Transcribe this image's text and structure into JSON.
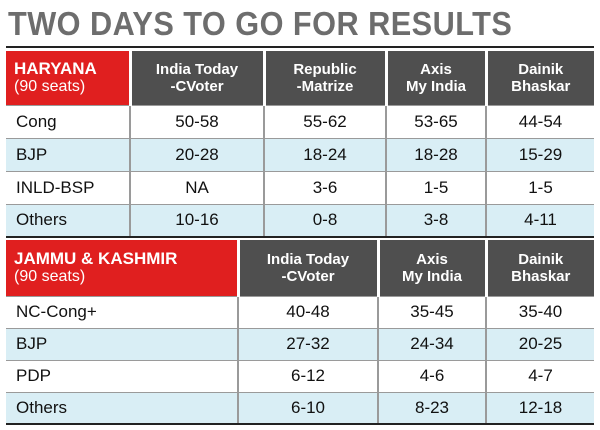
{
  "title": "TWO DAYS TO GO FOR RESULTS",
  "haryana": {
    "state": "HARYANA",
    "seats": "(90 seats)",
    "pollsters": [
      [
        "India Today",
        "-CVoter"
      ],
      [
        "Republic",
        "-Matrize"
      ],
      [
        "Axis",
        "My India"
      ],
      [
        "Dainik",
        "Bhaskar"
      ]
    ],
    "rows": [
      {
        "party": "Cong",
        "values": [
          "50-58",
          "55-62",
          "53-65",
          "44-54"
        ]
      },
      {
        "party": "BJP",
        "values": [
          "20-28",
          "18-24",
          "18-28",
          "15-29"
        ]
      },
      {
        "party": "INLD-BSP",
        "values": [
          "NA",
          "3-6",
          "1-5",
          "1-5"
        ]
      },
      {
        "party": "Others",
        "values": [
          "10-16",
          "0-8",
          "3-8",
          "4-11"
        ]
      }
    ]
  },
  "jk": {
    "state": "JAMMU & KASHMIR",
    "seats": "(90 seats)",
    "pollsters": [
      [
        "India Today",
        "-CVoter"
      ],
      [
        "Axis",
        "My India"
      ],
      [
        "Dainik",
        "Bhaskar"
      ]
    ],
    "rows": [
      {
        "party": "NC-Cong+",
        "values": [
          "40-48",
          "35-45",
          "35-40"
        ]
      },
      {
        "party": "BJP",
        "values": [
          "27-32",
          "24-34",
          "20-25"
        ]
      },
      {
        "party": "PDP",
        "values": [
          "6-12",
          "4-6",
          "4-7"
        ]
      },
      {
        "party": "Others",
        "values": [
          "6-10",
          "8-23",
          "12-18"
        ]
      }
    ]
  }
}
